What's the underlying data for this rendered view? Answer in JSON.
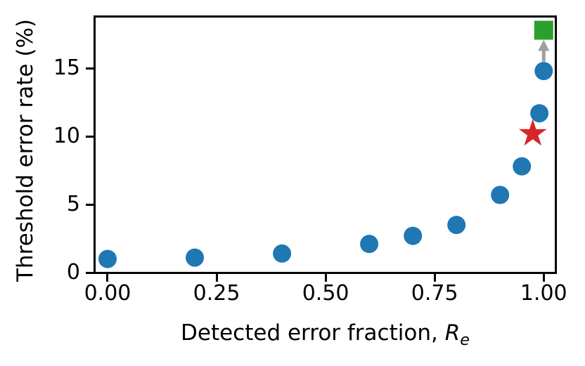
{
  "figure": {
    "background": "#ffffff",
    "spine_color": "#000000"
  },
  "chart_data": {
    "type": "scatter",
    "title": "",
    "xlabel": "Detected error fraction, R_e",
    "xlabel_prefix": "Detected error fraction, ",
    "xlabel_symbol": "R",
    "xlabel_subscript": "e",
    "ylabel": "Threshold error rate (%)",
    "xlim": [
      -0.029,
      1.027
    ],
    "ylim": [
      0,
      18.78
    ],
    "grid": false,
    "legend_position": "none",
    "xticks": [
      {
        "value": 0.0,
        "label": "0.00"
      },
      {
        "value": 0.25,
        "label": "0.25"
      },
      {
        "value": 0.5,
        "label": "0.50"
      },
      {
        "value": 0.75,
        "label": "0.75"
      },
      {
        "value": 1.0,
        "label": "1.00"
      }
    ],
    "yticks": [
      {
        "value": 0,
        "label": "0"
      },
      {
        "value": 5,
        "label": "5"
      },
      {
        "value": 10,
        "label": "10"
      },
      {
        "value": 15,
        "label": "15"
      }
    ],
    "series": [
      {
        "name": "threshold-error-rate-points",
        "marker": "circle",
        "color": "#1f77b4",
        "points": [
          [
            0.0,
            1.0
          ],
          [
            0.2,
            1.1
          ],
          [
            0.4,
            1.4
          ],
          [
            0.6,
            2.1
          ],
          [
            0.7,
            2.7
          ],
          [
            0.8,
            3.5
          ],
          [
            0.9,
            5.7
          ],
          [
            0.95,
            7.8
          ],
          [
            0.99,
            11.7
          ],
          [
            1.0,
            14.8
          ]
        ]
      },
      {
        "name": "highlight-star",
        "marker": "star",
        "color": "#d62728",
        "points": [
          [
            0.975,
            10.2
          ]
        ]
      },
      {
        "name": "reference-square",
        "marker": "square",
        "color": "#2ca02c",
        "points": [
          [
            1.0,
            17.8
          ]
        ]
      }
    ],
    "annotation_arrow": {
      "x": 1.0,
      "y_from": 15.5,
      "y_to": 17.1,
      "color": "#a0a0a0"
    }
  }
}
